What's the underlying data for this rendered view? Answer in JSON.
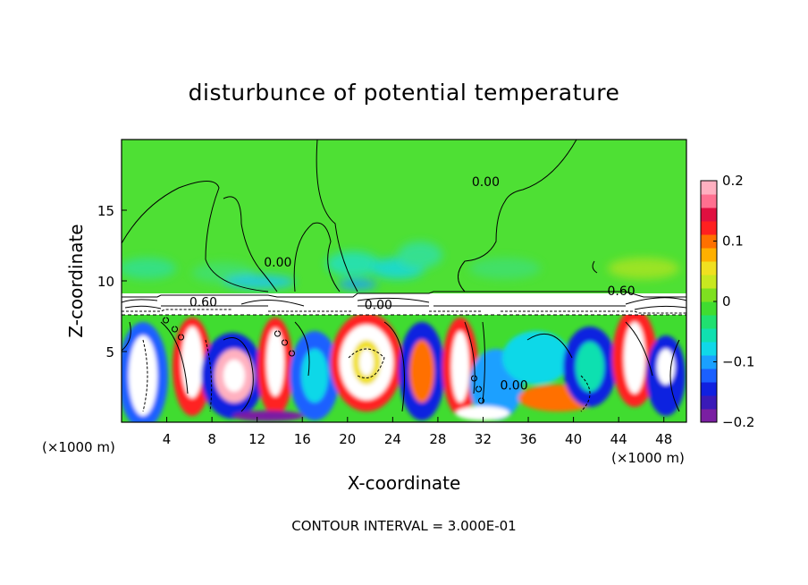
{
  "chart_data": {
    "type": "heatmap",
    "title": "disturbunce of potential temperature",
    "xlabel": "X-coordinate",
    "ylabel": "Z-coordinate",
    "x_unit_left": "(×1000 m)",
    "x_unit_right": "(×1000 m)",
    "xlim": [
      0,
      50
    ],
    "ylim": [
      0,
      20
    ],
    "xticks": [
      4,
      8,
      12,
      16,
      20,
      24,
      28,
      32,
      36,
      40,
      44,
      48
    ],
    "yticks": [
      5,
      10,
      15
    ],
    "colorbar": {
      "range": [
        -0.2,
        0.2
      ],
      "ticks": [
        {
          "value": 0.2,
          "label": "0.2"
        },
        {
          "value": 0.1,
          "label": "0.1"
        },
        {
          "value": 0,
          "label": "0"
        },
        {
          "value": -0.1,
          "label": "−0.1"
        },
        {
          "value": -0.2,
          "label": "−0.2"
        }
      ],
      "colors": [
        "#7a1fa2",
        "#3a1ab8",
        "#1020e0",
        "#1a60ff",
        "#1aa0ff",
        "#10d8e8",
        "#10e0b0",
        "#20e070",
        "#40dc30",
        "#7ee020",
        "#c8e820",
        "#f0e020",
        "#ffb000",
        "#ff7000",
        "#ff2020",
        "#e01040",
        "#ff7090",
        "#ffb0c0"
      ]
    },
    "contour_labels": [
      {
        "text": "0.00",
        "x": 31.0,
        "y": 16.7
      },
      {
        "text": "0.00",
        "x": 12.6,
        "y": 11.0
      },
      {
        "text": "0.60",
        "x": 43.0,
        "y": 9.0
      },
      {
        "text": "0.60",
        "x": 6.0,
        "y": 8.2
      },
      {
        "text": "0.00",
        "x": 21.5,
        "y": 8.0
      },
      {
        "text": "0.00",
        "x": 33.5,
        "y": 2.3
      }
    ],
    "footer": "CONTOUR INTERVAL = 3.000E-01"
  }
}
